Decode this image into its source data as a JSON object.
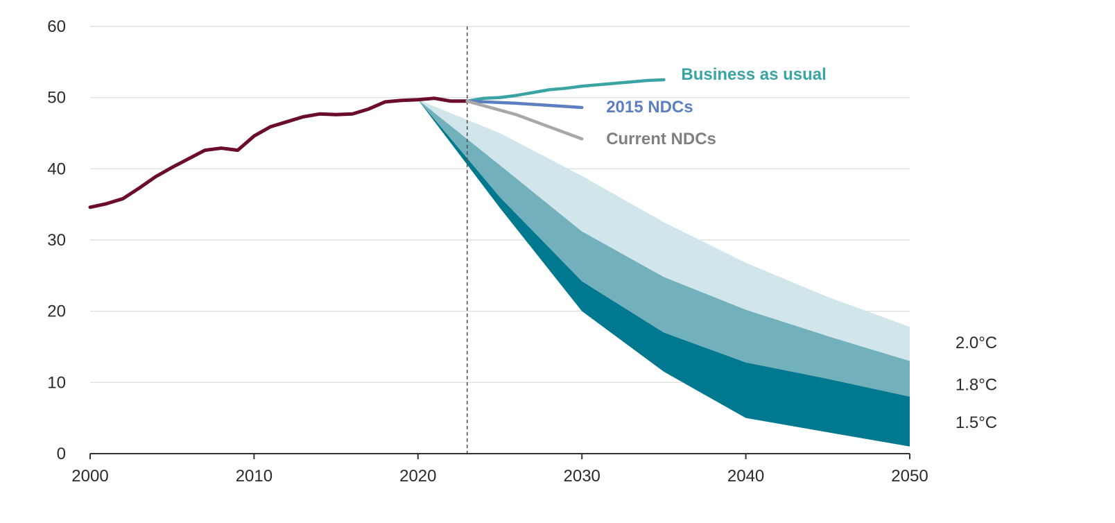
{
  "chart_data": {
    "type": "line",
    "xlim": [
      2000,
      2050
    ],
    "ylim": [
      0,
      60
    ],
    "x_ticks": [
      2000,
      2010,
      2020,
      2030,
      2040,
      2050
    ],
    "y_ticks": [
      0,
      10,
      20,
      30,
      40,
      50,
      60
    ],
    "grid": "horizontal",
    "reference_line": {
      "x": 2023,
      "style": "dashed"
    },
    "colors": {
      "historical": "#6b0d2a",
      "business_as_usual": "#3aa3a3",
      "ndc_2015": "#5b7fc0",
      "current_ndc": "#a8a8a8",
      "band_2_0": "#d1e6ea",
      "band_1_8": "#72b1bc",
      "band_1_5": "#00788f",
      "grid": "#dcdcdc",
      "axis": "#333333"
    },
    "series": [
      {
        "name": "",
        "key": "historical",
        "points": [
          [
            2000,
            34.6
          ],
          [
            2001,
            35.1
          ],
          [
            2002,
            35.8
          ],
          [
            2003,
            37.3
          ],
          [
            2004,
            38.9
          ],
          [
            2005,
            40.2
          ],
          [
            2006,
            41.4
          ],
          [
            2007,
            42.6
          ],
          [
            2008,
            42.9
          ],
          [
            2009,
            42.6
          ],
          [
            2010,
            44.6
          ],
          [
            2011,
            45.9
          ],
          [
            2012,
            46.6
          ],
          [
            2013,
            47.3
          ],
          [
            2014,
            47.7
          ],
          [
            2015,
            47.6
          ],
          [
            2016,
            47.7
          ],
          [
            2017,
            48.4
          ],
          [
            2018,
            49.4
          ],
          [
            2019,
            49.6
          ],
          [
            2020,
            49.7
          ],
          [
            2021,
            49.9
          ],
          [
            2022,
            49.5
          ],
          [
            2023,
            49.5
          ]
        ]
      },
      {
        "name": "Business as usual",
        "key": "business_as_usual",
        "points": [
          [
            2023,
            49.5
          ],
          [
            2024,
            49.9
          ],
          [
            2025,
            50.0
          ],
          [
            2026,
            50.3
          ],
          [
            2027,
            50.7
          ],
          [
            2028,
            51.1
          ],
          [
            2029,
            51.3
          ],
          [
            2030,
            51.6
          ],
          [
            2031,
            51.8
          ],
          [
            2032,
            52.0
          ],
          [
            2033,
            52.2
          ],
          [
            2034,
            52.4
          ],
          [
            2035,
            52.5
          ]
        ]
      },
      {
        "name": "2015 NDCs",
        "key": "ndc_2015",
        "points": [
          [
            2023,
            49.5
          ],
          [
            2026,
            49.2
          ],
          [
            2030,
            48.6
          ]
        ]
      },
      {
        "name": "Current NDCs",
        "key": "current_ndc",
        "points": [
          [
            2023,
            49.5
          ],
          [
            2026,
            47.6
          ],
          [
            2030,
            44.2
          ]
        ]
      }
    ],
    "bands": [
      {
        "name": "2.0°C",
        "key": "band_2_0",
        "upper": [
          [
            2020,
            49.7
          ],
          [
            2025,
            45.0
          ],
          [
            2030,
            39.0
          ],
          [
            2035,
            32.5
          ],
          [
            2040,
            26.8
          ],
          [
            2045,
            22.0
          ],
          [
            2050,
            17.8
          ]
        ],
        "lower": [
          [
            2020,
            49.7
          ],
          [
            2025,
            40.5
          ],
          [
            2030,
            31.2
          ],
          [
            2035,
            24.8
          ],
          [
            2040,
            20.2
          ],
          [
            2045,
            16.5
          ],
          [
            2050,
            13.0
          ]
        ]
      },
      {
        "name": "1.8°C",
        "key": "band_1_8",
        "upper": [
          [
            2020,
            49.7
          ],
          [
            2025,
            40.5
          ],
          [
            2030,
            31.2
          ],
          [
            2035,
            24.8
          ],
          [
            2040,
            20.2
          ],
          [
            2045,
            16.5
          ],
          [
            2050,
            13.0
          ]
        ],
        "lower": [
          [
            2020,
            49.7
          ],
          [
            2025,
            36.0
          ],
          [
            2030,
            24.2
          ],
          [
            2035,
            17.0
          ],
          [
            2040,
            12.8
          ],
          [
            2045,
            10.5
          ],
          [
            2050,
            8.0
          ]
        ]
      },
      {
        "name": "1.5°C",
        "key": "band_1_5",
        "upper": [
          [
            2020,
            49.7
          ],
          [
            2025,
            36.0
          ],
          [
            2030,
            24.2
          ],
          [
            2035,
            17.0
          ],
          [
            2040,
            12.8
          ],
          [
            2045,
            10.5
          ],
          [
            2050,
            8.0
          ]
        ],
        "lower": [
          [
            2020,
            49.7
          ],
          [
            2025,
            34.5
          ],
          [
            2030,
            20.0
          ],
          [
            2035,
            11.5
          ],
          [
            2040,
            5.0
          ],
          [
            2045,
            3.0
          ],
          [
            2050,
            1.0
          ]
        ]
      }
    ]
  }
}
